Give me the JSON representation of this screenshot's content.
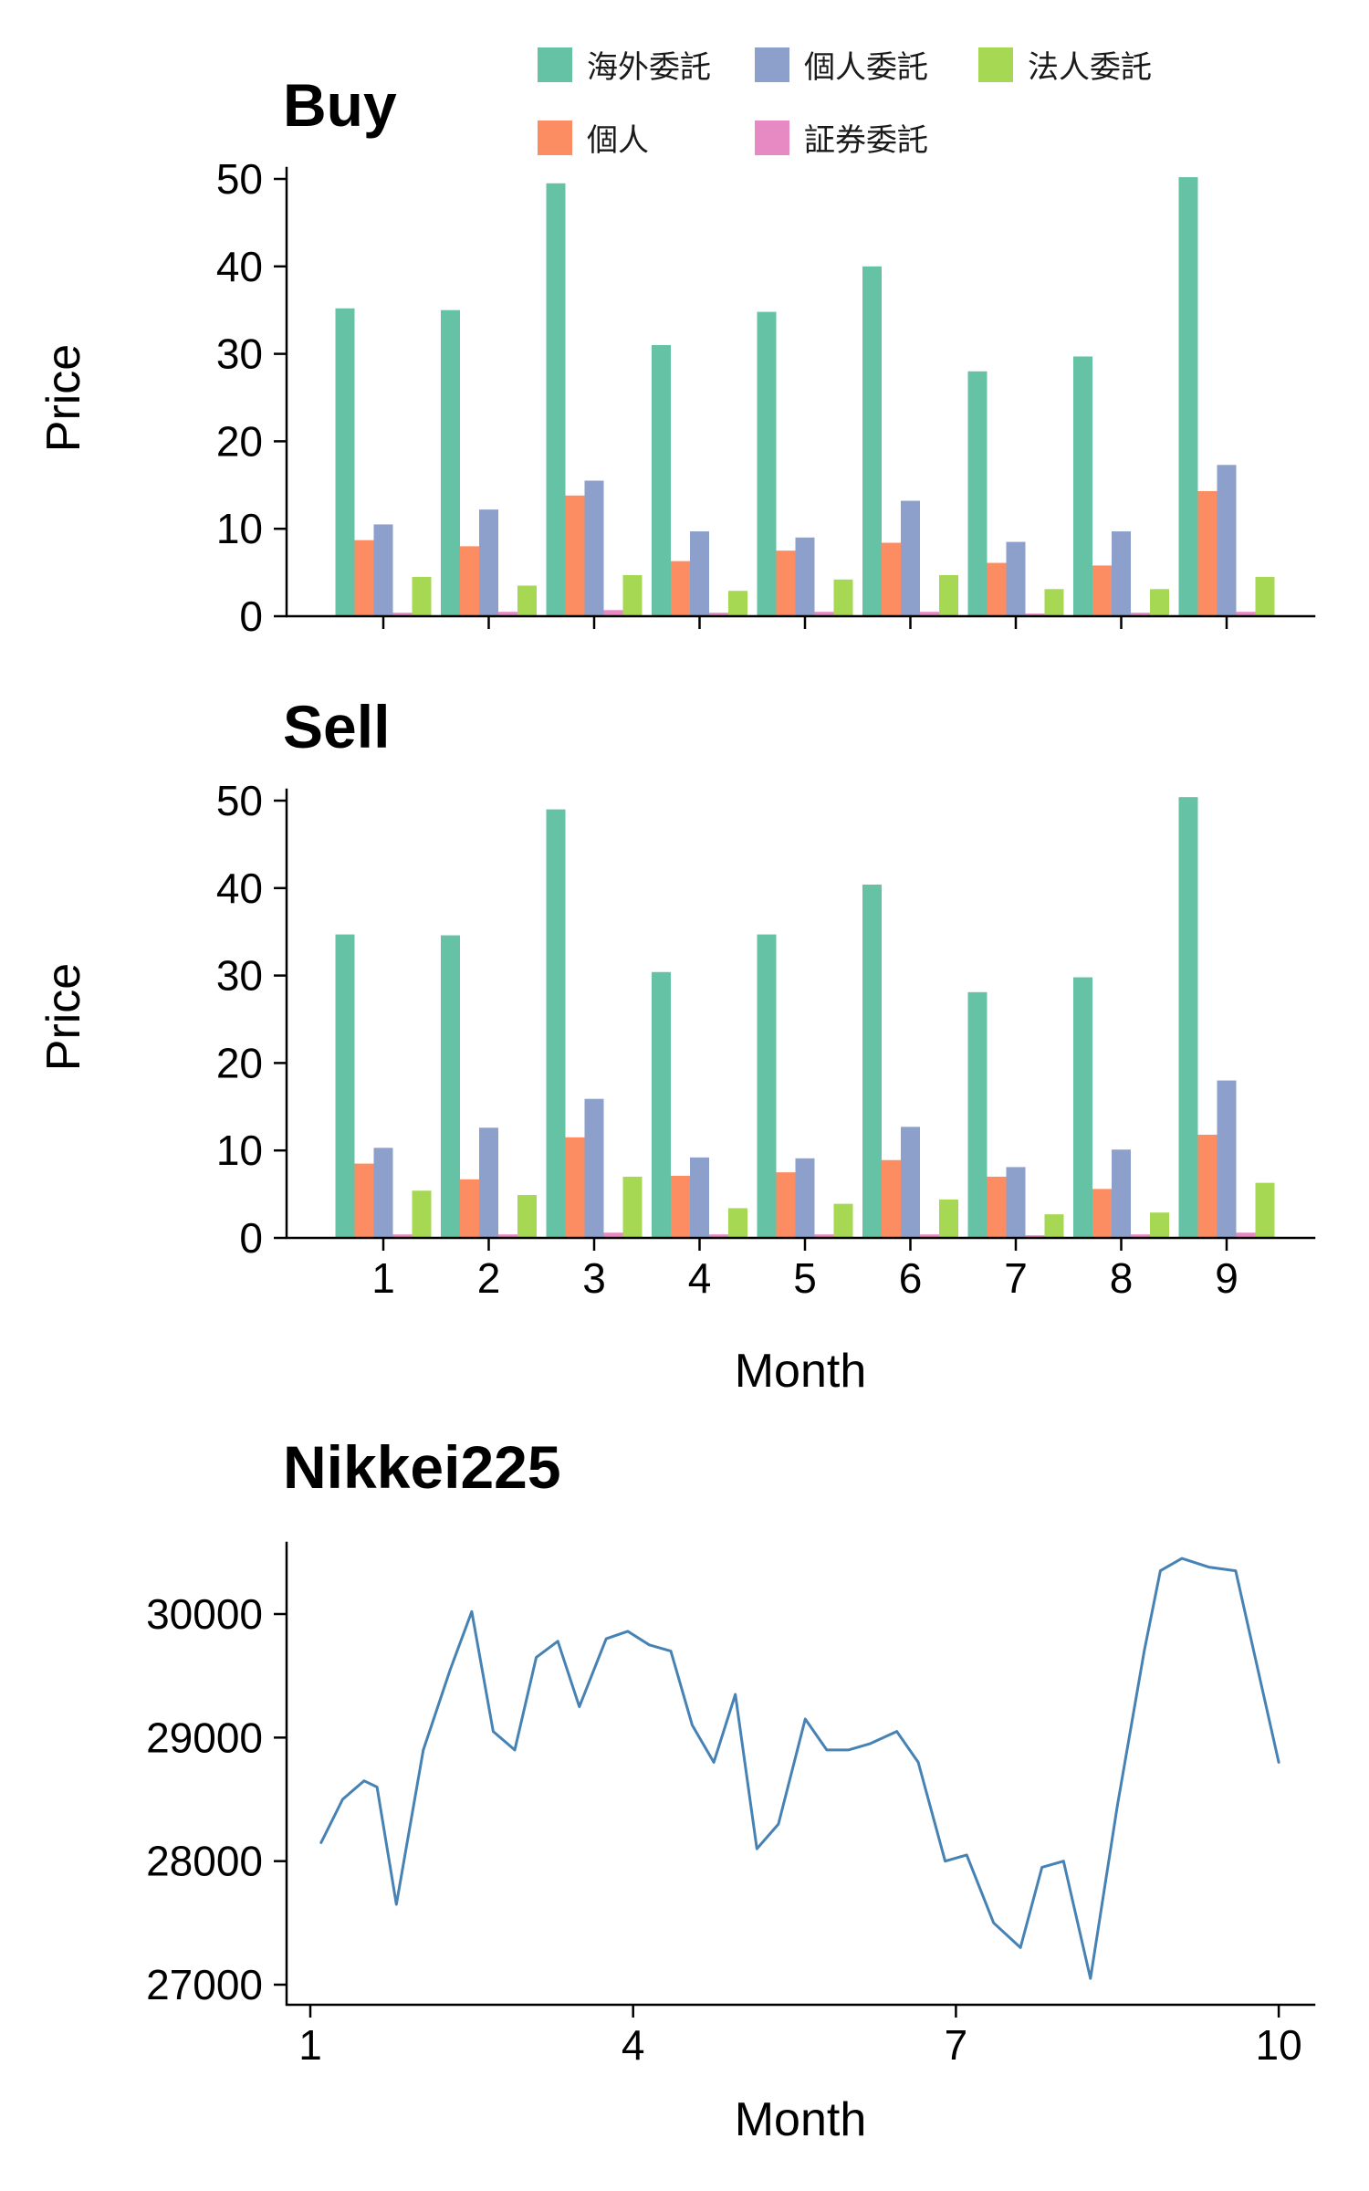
{
  "page": {
    "background": "#ffffff"
  },
  "legend": {
    "items": [
      {
        "label": "海外委託",
        "color": "#66C2A5"
      },
      {
        "label": "個人",
        "color": "#FC8D62"
      },
      {
        "label": "個人委託",
        "color": "#8DA0CB"
      },
      {
        "label": "証券委託",
        "color": "#E78AC3"
      },
      {
        "label": "法人委託",
        "color": "#A6D854"
      }
    ]
  },
  "chart_data": [
    {
      "type": "bar",
      "title": "Buy",
      "xlabel": "",
      "ylabel": "Price",
      "categories": [
        "1",
        "2",
        "3",
        "4",
        "5",
        "6",
        "7",
        "8",
        "9"
      ],
      "series": [
        {
          "name": "海外委託",
          "color": "#66C2A5",
          "values": [
            35.2,
            35.0,
            49.5,
            31.0,
            34.8,
            40.0,
            28.0,
            29.7,
            50.2
          ]
        },
        {
          "name": "個人",
          "color": "#FC8D62",
          "values": [
            8.7,
            8.0,
            13.8,
            6.3,
            7.5,
            8.4,
            6.1,
            5.8,
            14.3
          ]
        },
        {
          "name": "個人委託",
          "color": "#8DA0CB",
          "values": [
            10.5,
            12.2,
            15.5,
            9.7,
            9.0,
            13.2,
            8.5,
            9.7,
            17.3
          ]
        },
        {
          "name": "証券委託",
          "color": "#E78AC3",
          "values": [
            0.4,
            0.5,
            0.7,
            0.4,
            0.5,
            0.5,
            0.3,
            0.4,
            0.5
          ]
        },
        {
          "name": "法人委託",
          "color": "#A6D854",
          "values": [
            4.5,
            3.5,
            4.7,
            2.9,
            4.2,
            4.7,
            3.1,
            3.1,
            4.5
          ]
        }
      ],
      "ylim": [
        0,
        50
      ],
      "yticks": [
        0,
        10,
        20,
        30,
        40,
        50
      ],
      "grid": false,
      "legend_position": "top"
    },
    {
      "type": "bar",
      "title": "Sell",
      "xlabel": "Month",
      "ylabel": "Price",
      "categories": [
        "1",
        "2",
        "3",
        "4",
        "5",
        "6",
        "7",
        "8",
        "9"
      ],
      "series": [
        {
          "name": "海外委託",
          "color": "#66C2A5",
          "values": [
            34.7,
            34.6,
            49.0,
            30.4,
            34.7,
            40.4,
            28.1,
            29.8,
            50.4
          ]
        },
        {
          "name": "個人",
          "color": "#FC8D62",
          "values": [
            8.5,
            6.7,
            11.5,
            7.1,
            7.5,
            8.9,
            7.0,
            5.6,
            11.8
          ]
        },
        {
          "name": "個人委託",
          "color": "#8DA0CB",
          "values": [
            10.3,
            12.6,
            15.9,
            9.2,
            9.1,
            12.7,
            8.1,
            10.1,
            18.0
          ]
        },
        {
          "name": "証券委託",
          "color": "#E78AC3",
          "values": [
            0.4,
            0.4,
            0.6,
            0.4,
            0.4,
            0.4,
            0.3,
            0.4,
            0.6
          ]
        },
        {
          "name": "法人委託",
          "color": "#A6D854",
          "values": [
            5.4,
            4.9,
            7.0,
            3.4,
            3.9,
            4.4,
            2.7,
            2.9,
            6.3
          ]
        }
      ],
      "ylim": [
        0,
        50
      ],
      "yticks": [
        0,
        10,
        20,
        30,
        40,
        50
      ],
      "grid": false,
      "legend_position": "none"
    },
    {
      "type": "line",
      "title": "Nikkei225",
      "xlabel": "Month",
      "ylabel": "",
      "line_color": "#4682B4",
      "x": [
        1.1,
        1.3,
        1.5,
        1.62,
        1.8,
        2.05,
        2.3,
        2.5,
        2.7,
        2.9,
        3.1,
        3.3,
        3.5,
        3.75,
        3.95,
        4.15,
        4.35,
        4.55,
        4.75,
        4.95,
        5.15,
        5.35,
        5.6,
        5.8,
        6.0,
        6.2,
        6.45,
        6.65,
        6.9,
        7.1,
        7.35,
        7.6,
        7.8,
        8.0,
        8.25,
        8.5,
        8.75,
        8.9,
        9.1,
        9.35,
        9.6,
        10.0
      ],
      "y": [
        28150,
        28500,
        28650,
        28600,
        27650,
        28900,
        29550,
        30020,
        29050,
        28900,
        29650,
        29780,
        29250,
        29800,
        29860,
        29750,
        29700,
        29100,
        28800,
        29350,
        28100,
        28300,
        29150,
        28900,
        28900,
        28950,
        29050,
        28800,
        28000,
        28050,
        27500,
        27300,
        27950,
        28000,
        27050,
        28450,
        29700,
        30350,
        30450,
        30380,
        30350,
        28800
      ],
      "xlim": [
        1,
        10
      ],
      "ylim": [
        27000,
        30500
      ],
      "xticks": [
        1,
        4,
        7,
        10
      ],
      "yticks": [
        27000,
        28000,
        29000,
        30000
      ],
      "grid": false,
      "legend_position": "none"
    }
  ]
}
